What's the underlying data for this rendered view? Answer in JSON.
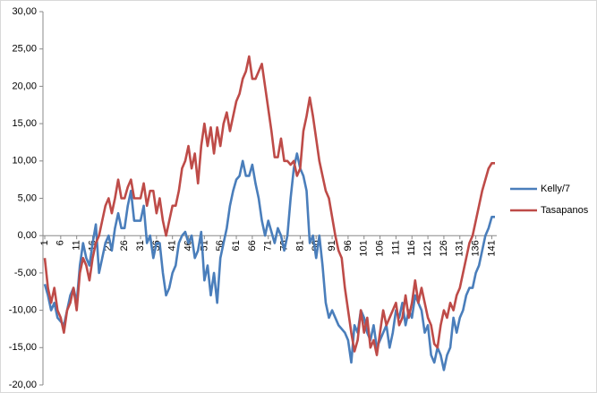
{
  "chart_data": {
    "type": "line",
    "categories": [
      "1",
      null,
      null,
      null,
      null,
      "6",
      null,
      null,
      null,
      null,
      "11",
      null,
      null,
      null,
      null,
      "16",
      null,
      null,
      null,
      null,
      "21",
      null,
      null,
      null,
      null,
      "26",
      null,
      null,
      null,
      null,
      "31",
      null,
      null,
      null,
      null,
      "36",
      null,
      null,
      null,
      null,
      "41",
      null,
      null,
      null,
      null,
      "46",
      null,
      null,
      null,
      null,
      "51",
      null,
      null,
      null,
      null,
      "56",
      null,
      null,
      null,
      null,
      "61",
      null,
      null,
      null,
      null,
      "66",
      null,
      null,
      null,
      null,
      "71",
      null,
      null,
      null,
      null,
      "76",
      null,
      null,
      null,
      null,
      "81",
      null,
      null,
      null,
      null,
      "86",
      null,
      null,
      null,
      null,
      "91",
      null,
      null,
      null,
      null,
      "96",
      null,
      null,
      null,
      null,
      "101",
      null,
      null,
      null,
      null,
      "106",
      null,
      null,
      null,
      null,
      "111",
      null,
      null,
      null,
      null,
      "116",
      null,
      null,
      null,
      null,
      "121",
      null,
      null,
      null,
      null,
      "126",
      null,
      null,
      null,
      null,
      "131",
      null,
      null,
      null,
      null,
      "136",
      null,
      null,
      null,
      null,
      "141",
      null
    ],
    "series": [
      {
        "name": "Kelly/7",
        "color": "#4a7ebb",
        "values": [
          -6.5,
          -8,
          -10,
          -9,
          -11,
          -11.5,
          -12,
          -10,
          -8,
          -7,
          -9,
          -4,
          -1,
          -3,
          -4,
          -1,
          1.5,
          -5,
          -3,
          -1,
          0,
          -2,
          1,
          3,
          1,
          1,
          4,
          6,
          2,
          2,
          2,
          4,
          -1,
          0,
          -3,
          -1,
          -1,
          -5,
          -8,
          -7,
          -5,
          -4,
          -1,
          0,
          0.5,
          -1,
          0,
          -3,
          -2,
          0.5,
          -6,
          -4,
          -8,
          -5,
          -9,
          -3,
          -1,
          1,
          4,
          6,
          7.5,
          8,
          10,
          8,
          8,
          9.5,
          7,
          5,
          2,
          0,
          2,
          0.5,
          -1,
          1,
          0,
          -2,
          0,
          5,
          9,
          11,
          9,
          8,
          6,
          -1,
          0,
          -3,
          0,
          -4,
          -9,
          -11,
          -10,
          -11,
          -12,
          -12.5,
          -13,
          -14,
          -17,
          -12,
          -13,
          -10,
          -11,
          -13,
          -14,
          -12,
          -15,
          -14,
          -13,
          -12,
          -15,
          -13,
          -10,
          -11,
          -9,
          -12,
          -10,
          -11,
          -8,
          -9,
          -10,
          -13,
          -12,
          -16,
          -17,
          -15,
          -16,
          -18,
          -16,
          -15,
          -11,
          -13,
          -11,
          -10,
          -8,
          -7,
          -7,
          -5,
          -4,
          -2,
          0,
          1,
          2.5,
          2.5
        ]
      },
      {
        "name": "Tasapanos",
        "color": "#be4b48",
        "values": [
          -3,
          -7,
          -9,
          -7,
          -10,
          -11,
          -13,
          -10,
          -9,
          -7,
          -10,
          -5,
          -3,
          -4,
          -6,
          -3,
          -1,
          0,
          2,
          4,
          5,
          3,
          5,
          7.5,
          5,
          5,
          6.5,
          7.5,
          5,
          5,
          5,
          7,
          4,
          6,
          6,
          3,
          5,
          2,
          0,
          2,
          4,
          4,
          6,
          9,
          10,
          12,
          9,
          11,
          7,
          12,
          15,
          12,
          14.5,
          11,
          14.5,
          12,
          15,
          16.5,
          14,
          16,
          18,
          19,
          21,
          22,
          24,
          21,
          21,
          22,
          23,
          20,
          17,
          14,
          10.5,
          10.5,
          13,
          10,
          10,
          9.5,
          10,
          8,
          9,
          14,
          16,
          18.5,
          16,
          13,
          10,
          8,
          6,
          5,
          2.5,
          0,
          -2,
          -3,
          -7,
          -10,
          -13,
          -15.5,
          -14,
          -10,
          -13,
          -11,
          -15,
          -14,
          -16,
          -13,
          -10,
          -12,
          -11,
          -10,
          -9,
          -12,
          -11,
          -8,
          -11,
          -9,
          -6,
          -9,
          -7,
          -9,
          -11,
          -12,
          -14.5,
          -15,
          -12,
          -10,
          -11,
          -9,
          -10,
          -8,
          -7,
          -5,
          -3,
          -1,
          0,
          2,
          4,
          6,
          7.5,
          9,
          9.7,
          9.7
        ]
      }
    ],
    "ylim": [
      -20,
      30
    ],
    "yticks": [
      {
        "value": -20,
        "label": "-20,00"
      },
      {
        "value": -15,
        "label": "-15,00"
      },
      {
        "value": -10,
        "label": "-10,00"
      },
      {
        "value": -5,
        "label": "-5,00"
      },
      {
        "value": 0,
        "label": "0,00"
      },
      {
        "value": 5,
        "label": "5,00"
      },
      {
        "value": 10,
        "label": "10,00"
      },
      {
        "value": 15,
        "label": "15,00"
      },
      {
        "value": 20,
        "label": "20,00"
      },
      {
        "value": 25,
        "label": "25,00"
      },
      {
        "value": 30,
        "label": "30,00"
      }
    ],
    "grid": false,
    "legend": "right"
  }
}
